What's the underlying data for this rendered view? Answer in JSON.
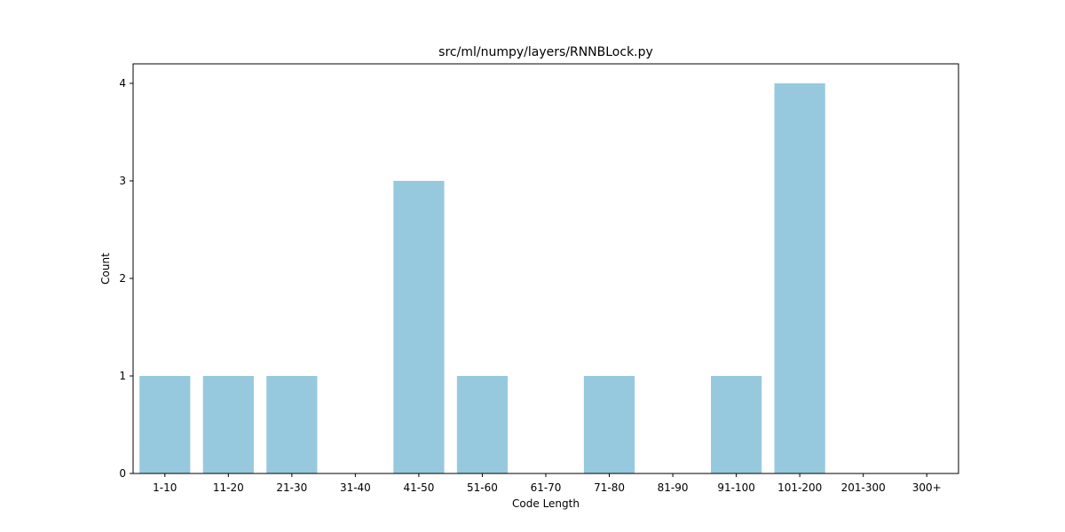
{
  "chart_data": {
    "type": "bar",
    "title": "src/ml/numpy/layers/RNNBLock.py",
    "xlabel": "Code Length",
    "ylabel": "Count",
    "categories": [
      "1-10",
      "11-20",
      "21-30",
      "31-40",
      "41-50",
      "51-60",
      "61-70",
      "71-80",
      "81-90",
      "91-100",
      "101-200",
      "201-300",
      "300+"
    ],
    "values": [
      1,
      1,
      1,
      0,
      3,
      1,
      0,
      1,
      0,
      1,
      4,
      0,
      0
    ],
    "ylim": [
      0,
      4.2
    ],
    "yticks": [
      0,
      1,
      2,
      3,
      4
    ],
    "grid": false,
    "legend": "none",
    "colors": {
      "bar": "#96c9de",
      "axis": "#000000",
      "background": "#ffffff"
    }
  }
}
